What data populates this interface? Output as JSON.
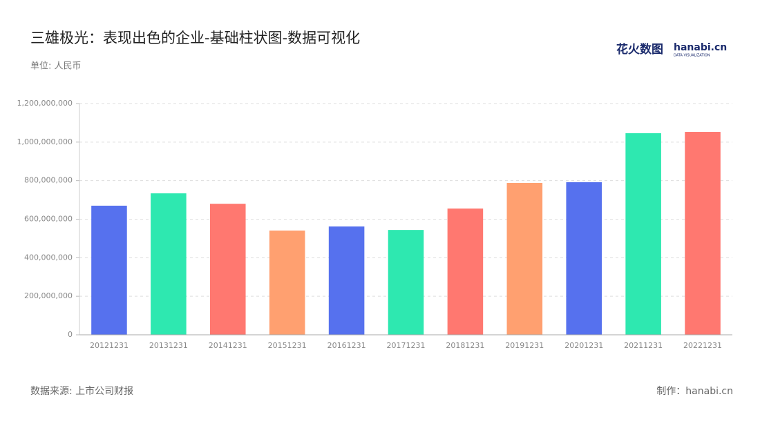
{
  "chart_data": {
    "type": "bar",
    "title": "三雄极光：表现出色的企业-基础柱状图-数据可视化",
    "subtitle": "单位: 人民币",
    "source": "数据来源: 上市公司财报",
    "credit": "制作：hanabi.cn",
    "logo": {
      "brand": "花火数图",
      "site": "hanabi.cn",
      "tagline": "DATA VISUALIZATION"
    },
    "categories": [
      "20121231",
      "20131231",
      "20141231",
      "20151231",
      "20161231",
      "20171231",
      "20181231",
      "20191231",
      "20201231",
      "20211231",
      "20221231"
    ],
    "values": [
      670000000,
      734000000,
      680000000,
      541000000,
      562000000,
      544000000,
      655000000,
      788000000,
      792000000,
      1046000000,
      1053000000
    ],
    "colors": [
      "#5671ee",
      "#2ee8b0",
      "#ff7870",
      "#ffa070",
      "#5671ee",
      "#2ee8b0",
      "#ff7870",
      "#ffa070",
      "#5671ee",
      "#2ee8b0",
      "#ff7870"
    ],
    "ylim": [
      0,
      1200000000
    ],
    "yticks": [
      0,
      {
        "value": 200000000,
        "label": "200,000,000"
      },
      {
        "value": 400000000,
        "label": "400,000,000"
      },
      {
        "value": 600000000,
        "label": "600,000,000"
      },
      {
        "value": 800000000,
        "label": "800,000,000"
      },
      {
        "value": 1000000000,
        "label": "1,000,000,000"
      },
      {
        "value": 1200000000,
        "label": "1,200,000,000"
      }
    ],
    "grid": true
  }
}
